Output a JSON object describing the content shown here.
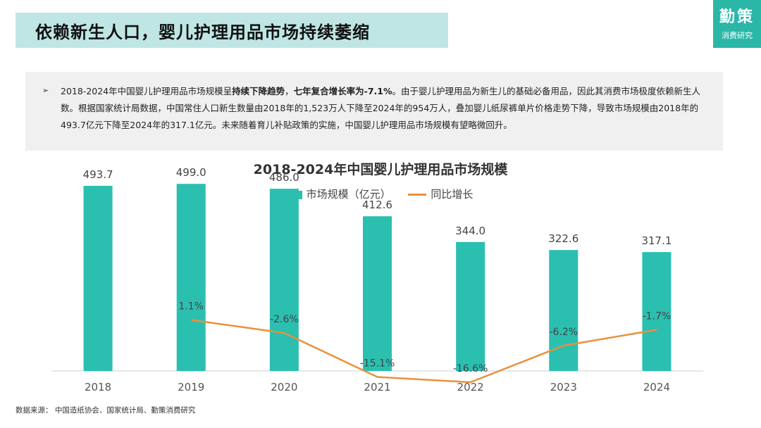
{
  "header": {
    "title": "依赖新生人口，婴儿护理用品市场持续萎缩",
    "logo_main": "勤策",
    "logo_sub": "消费研究"
  },
  "summary": {
    "arrow": "➢",
    "parts": [
      {
        "text": "2018-2024年中国婴儿护理用品市场规模呈",
        "bold": false
      },
      {
        "text": "持续下降趋势",
        "bold": true
      },
      {
        "text": "，",
        "bold": false
      },
      {
        "text": "七年复合增长率为-7.1%",
        "bold": true
      },
      {
        "text": "。由于婴儿护理用品为新生儿的基础必备用品，因此其消费市场极度依赖新生人数。根据国家统计局数据，中国常住人口新生数量由2018年的1,523万人下降至2024年的954万人，叠加婴儿纸尿裤单片价格走势下降，导致市场规模由2018年的493.7亿元下降至2024年的317.1亿元。未来随着育儿补贴政策的实施，中国婴儿护理用品市场规模有望略微回升。",
        "bold": false
      }
    ]
  },
  "chart_data": {
    "type": "bar+line",
    "title": "2018-2024年中国婴儿护理用品市场规模",
    "categories": [
      "2018",
      "2019",
      "2020",
      "2021",
      "2022",
      "2023",
      "2024"
    ],
    "series": [
      {
        "name": "市场规模（亿元）",
        "type": "bar",
        "color": "#2bbfb0",
        "values": [
          493.7,
          499.0,
          486.0,
          412.6,
          344.0,
          322.6,
          317.1
        ],
        "labels": [
          "493.7",
          "499.0",
          "486.0",
          "412.6",
          "344.0",
          "322.6",
          "317.1"
        ]
      },
      {
        "name": "同比增长",
        "type": "line",
        "color": "#e8913e",
        "values": [
          null,
          1.1,
          -2.6,
          -15.1,
          -16.6,
          -6.2,
          -1.7
        ],
        "labels": [
          "",
          "1.1%",
          "-2.6%",
          "-15.1%",
          "-16.6%",
          "-6.2%",
          "-1.7%"
        ]
      }
    ],
    "ylim": [
      0,
      520
    ],
    "y2lim": [
      -20,
      20
    ],
    "legend_position": "top-center",
    "grid": false
  },
  "footer": {
    "source": "数据来源：  中国造纸协会、国家统计局、勤策消费研究"
  }
}
